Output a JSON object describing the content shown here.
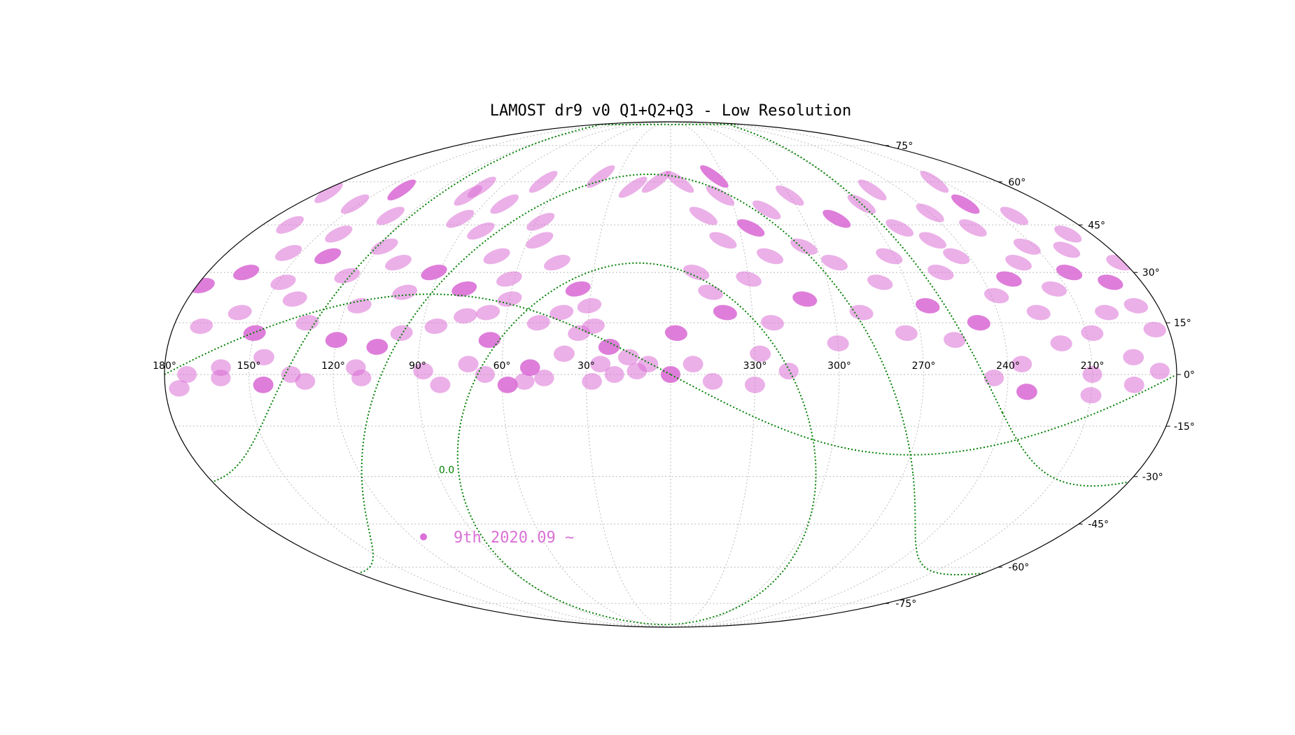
{
  "chart_data": {
    "type": "scatter",
    "projection": "mollweide",
    "title": "LAMOST dr9 v0 Q1+Q2+Q3 - Low Resolution",
    "x_ticks": [
      "330°",
      "300°",
      "270°",
      "240°",
      "210°",
      "180°",
      "150°",
      "120°",
      "90°",
      "60°",
      "30°"
    ],
    "x_tick_values": [
      330,
      300,
      270,
      240,
      210,
      180,
      150,
      120,
      90,
      60,
      30
    ],
    "y_ticks": [
      "75°",
      "60°",
      "45°",
      "30°",
      "15°",
      "0°",
      "-15°",
      "-30°",
      "-45°",
      "-60°",
      "-75°"
    ],
    "y_tick_values": [
      75,
      60,
      45,
      30,
      15,
      0,
      -15,
      -30,
      -45,
      -60,
      -75
    ],
    "ra_direction": "increasing to the left",
    "grid": true,
    "legend_location": "lower-left",
    "series": [
      {
        "name": "9th 2020.09 ~",
        "color": "#da70d6",
        "points": [
          [
            0,
            0
          ],
          [
            8,
            3
          ],
          [
            12,
            1
          ],
          [
            15,
            5
          ],
          [
            20,
            0
          ],
          [
            22,
            8
          ],
          [
            25,
            3
          ],
          [
            28,
            14
          ],
          [
            30,
            20
          ],
          [
            33,
            12
          ],
          [
            35,
            25
          ],
          [
            38,
            6
          ],
          [
            40,
            18
          ],
          [
            45,
            33
          ],
          [
            48,
            15
          ],
          [
            50,
            2
          ],
          [
            55,
            40
          ],
          [
            58,
            46
          ],
          [
            60,
            22
          ],
          [
            62,
            28
          ],
          [
            65,
            10
          ],
          [
            67,
            18
          ],
          [
            70,
            35
          ],
          [
            72,
            3
          ],
          [
            75,
            17
          ],
          [
            78,
            25
          ],
          [
            80,
            52
          ],
          [
            82,
            43
          ],
          [
            85,
            14
          ],
          [
            88,
            1
          ],
          [
            92,
            30
          ],
          [
            95,
            47
          ],
          [
            97,
            12
          ],
          [
            100,
            24
          ],
          [
            102,
            55
          ],
          [
            105,
            8
          ],
          [
            108,
            33
          ],
          [
            112,
            2
          ],
          [
            115,
            20
          ],
          [
            118,
            38
          ],
          [
            120,
            10
          ],
          [
            125,
            29
          ],
          [
            128,
            48
          ],
          [
            132,
            15
          ],
          [
            135,
            0
          ],
          [
            138,
            35
          ],
          [
            140,
            22
          ],
          [
            142,
            42
          ],
          [
            145,
            5
          ],
          [
            148,
            27
          ],
          [
            150,
            12
          ],
          [
            152,
            52
          ],
          [
            155,
            36
          ],
          [
            158,
            18
          ],
          [
            160,
            2
          ],
          [
            165,
            30
          ],
          [
            168,
            45
          ],
          [
            170,
            14
          ],
          [
            172,
            0
          ],
          [
            175,
            56
          ],
          [
            178,
            26
          ],
          [
            182,
            33
          ],
          [
            185,
            13
          ],
          [
            188,
            20
          ],
          [
            190,
            42
          ],
          [
            192,
            27
          ],
          [
            195,
            5
          ],
          [
            198,
            37
          ],
          [
            200,
            18
          ],
          [
            203,
            48
          ],
          [
            205,
            30
          ],
          [
            208,
            12
          ],
          [
            210,
            0
          ],
          [
            213,
            38
          ],
          [
            215,
            25
          ],
          [
            218,
            52
          ],
          [
            220,
            9
          ],
          [
            222,
            33
          ],
          [
            225,
            18
          ],
          [
            228,
            44
          ],
          [
            230,
            28
          ],
          [
            235,
            3
          ],
          [
            238,
            23
          ],
          [
            240,
            49
          ],
          [
            245,
            35
          ],
          [
            248,
            15
          ],
          [
            250,
            40
          ],
          [
            255,
            30
          ],
          [
            258,
            10
          ],
          [
            260,
            44
          ],
          [
            265,
            20
          ],
          [
            268,
            52
          ],
          [
            272,
            35
          ],
          [
            275,
            12
          ],
          [
            280,
            27
          ],
          [
            285,
            47
          ],
          [
            290,
            18
          ],
          [
            295,
            33
          ],
          [
            300,
            9
          ],
          [
            305,
            38
          ],
          [
            310,
            22
          ],
          [
            315,
            50
          ],
          [
            318,
            1
          ],
          [
            320,
            35
          ],
          [
            323,
            15
          ],
          [
            325,
            44
          ],
          [
            328,
            6
          ],
          [
            330,
            28
          ],
          [
            335,
            55
          ],
          [
            338,
            40
          ],
          [
            340,
            18
          ],
          [
            345,
            48
          ],
          [
            350,
            30
          ],
          [
            352,
            3
          ],
          [
            355,
            60
          ],
          [
            358,
            12
          ],
          [
            8,
            60
          ],
          [
            20,
            58
          ],
          [
            40,
            62
          ],
          [
            70,
            60
          ],
          [
            140,
            57
          ],
          [
            215,
            60
          ],
          [
            100,
            58
          ],
          [
            255,
            57
          ],
          [
            300,
            55
          ],
          [
            335,
            62
          ],
          [
            345,
            24
          ],
          [
            28,
            -2
          ],
          [
            45,
            -1
          ],
          [
            52,
            -2
          ],
          [
            58,
            -3
          ],
          [
            66,
            0
          ],
          [
            82,
            -3
          ],
          [
            110,
            -1
          ],
          [
            130,
            -2
          ],
          [
            145,
            -3
          ],
          [
            160,
            -1
          ],
          [
            175,
            -4
          ],
          [
            186,
            1
          ],
          [
            195,
            -3
          ],
          [
            233,
            -5
          ],
          [
            245,
            -1
          ],
          [
            210,
            -6
          ],
          [
            330,
            -3
          ],
          [
            345,
            -2
          ]
        ]
      }
    ],
    "overlay_lines": [
      {
        "name": "galactic-plane",
        "color": "#008000",
        "style": "dotted"
      },
      {
        "name": "ecliptic",
        "color": "#008000",
        "style": "dotted"
      },
      {
        "name": "galactic-b-plus",
        "color": "#008000",
        "style": "dotted"
      },
      {
        "name": "galactic-b-minus",
        "color": "#008000",
        "style": "dotted"
      }
    ],
    "overlay_label": "0.0",
    "colors": {
      "point_fill": "#da70d6",
      "overlay": "#008000",
      "grid": "#bbbbbb",
      "border": "#000000",
      "legend_text": "#da70d6"
    }
  }
}
